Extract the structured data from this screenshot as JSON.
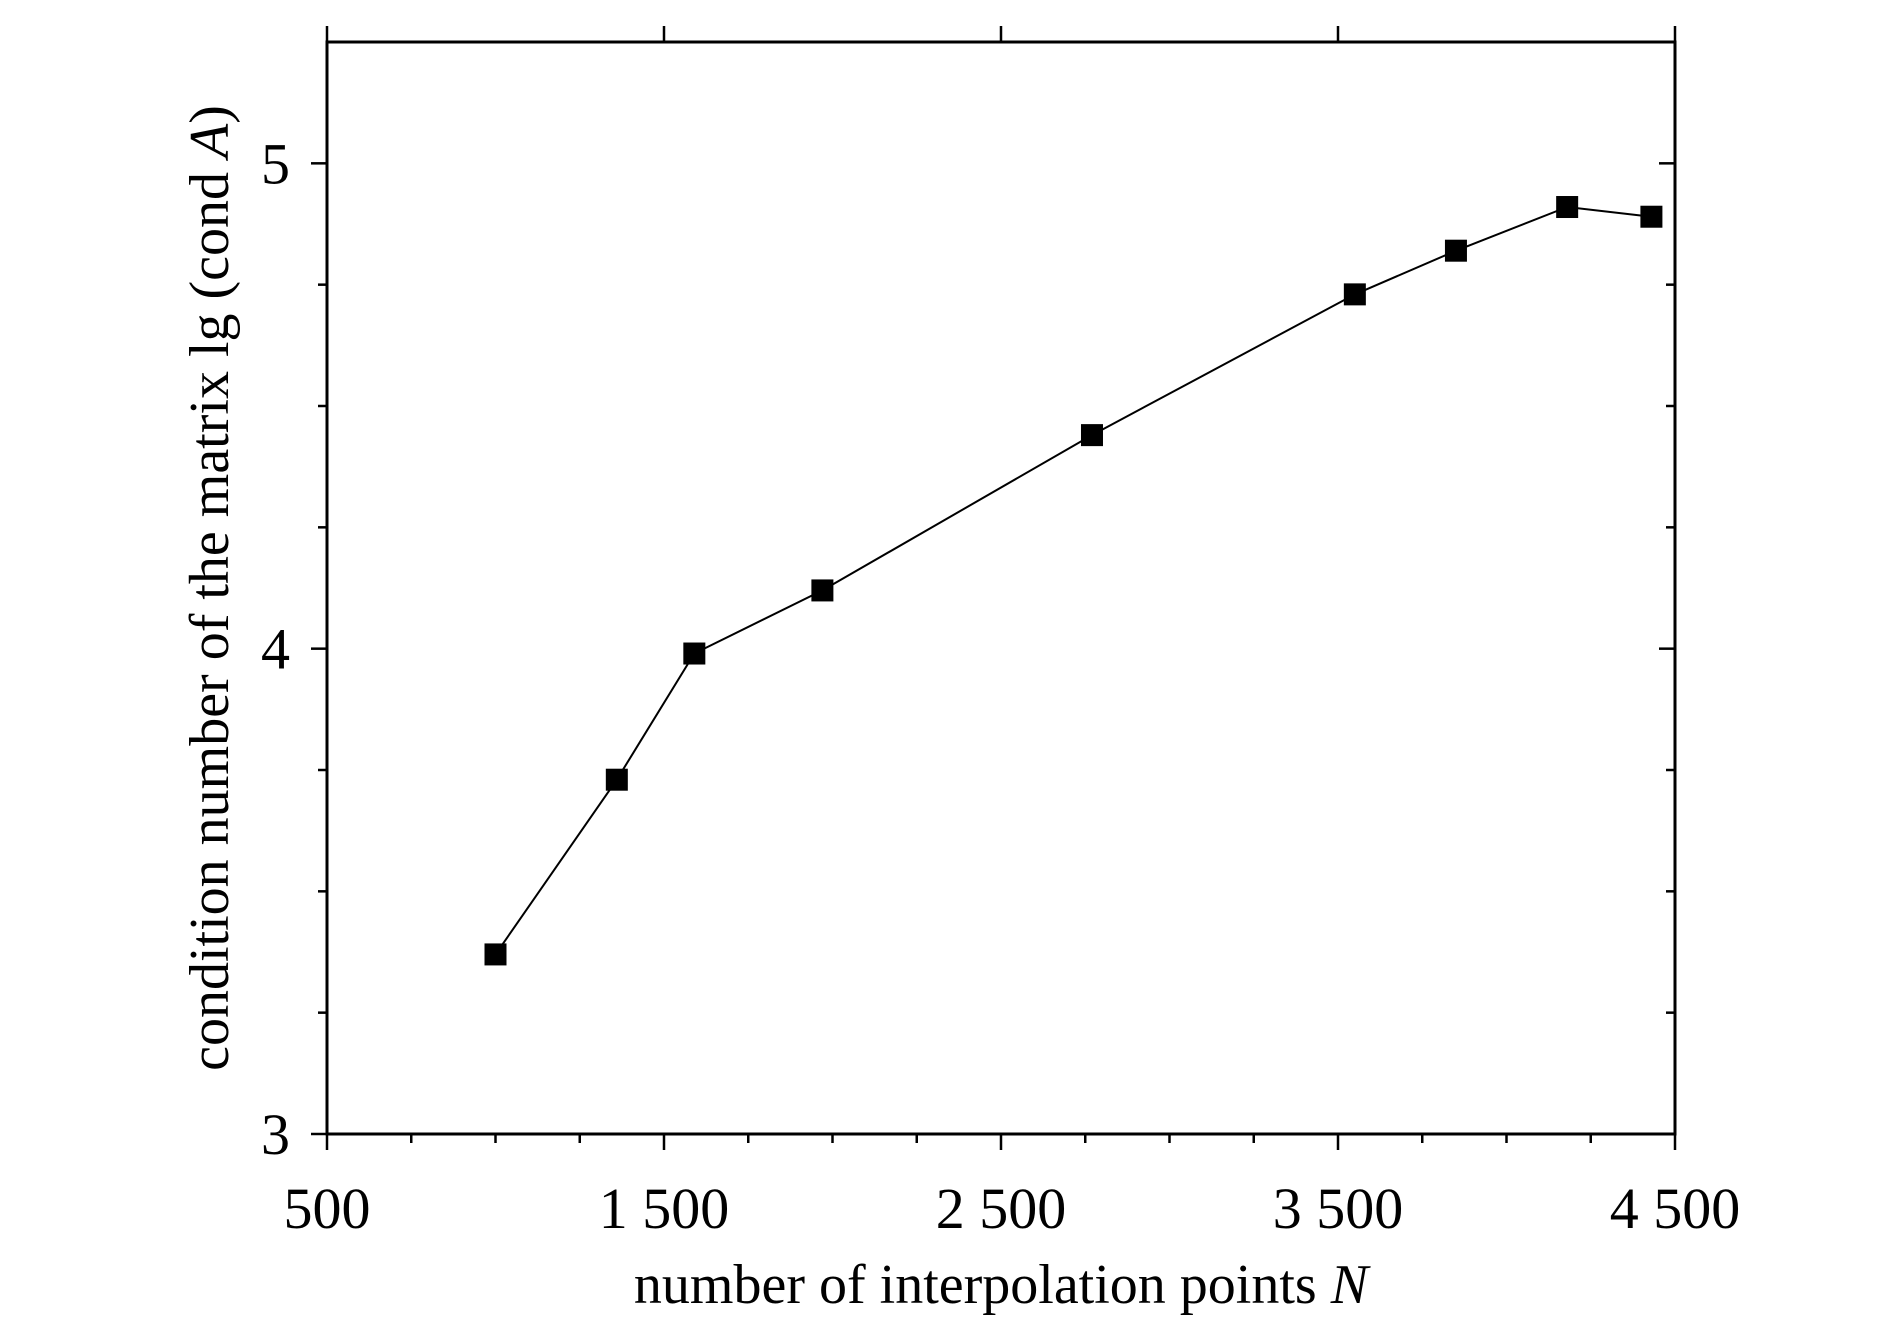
{
  "chart_data": {
    "type": "line",
    "xlabel": "number of interpolation points",
    "xlabel_var": "N",
    "ylabel": "condition number of the matrix lg (cond",
    "ylabel_var": "A",
    "ylabel_close": ")",
    "xlim": [
      500,
      4500
    ],
    "ylim": [
      3,
      5.25
    ],
    "x_major_ticks": [
      500,
      1500,
      2500,
      3500,
      4500
    ],
    "x_tick_labels": [
      "500",
      "1 500",
      "2 500",
      "3 500",
      "4 500"
    ],
    "x_minor_ticks": [
      750,
      1000,
      1250,
      1750,
      2000,
      2250,
      2750,
      3000,
      3250,
      3750,
      4000,
      4250
    ],
    "y_major_ticks": [
      3,
      4,
      5
    ],
    "y_tick_labels": [
      "3",
      "4",
      "5"
    ],
    "y_minor_ticks": [
      3.25,
      3.5,
      3.75,
      4.25,
      4.5,
      4.75
    ],
    "grid": false,
    "legend": "none",
    "marker": "square",
    "color": "#000000",
    "series": [
      {
        "x": [
          1000,
          1360,
          1590,
          1970,
          2770,
          3550,
          3850,
          4180,
          4430
        ],
        "y": [
          3.37,
          3.73,
          3.99,
          4.12,
          4.44,
          4.73,
          4.82,
          4.91,
          4.89
        ]
      }
    ]
  }
}
